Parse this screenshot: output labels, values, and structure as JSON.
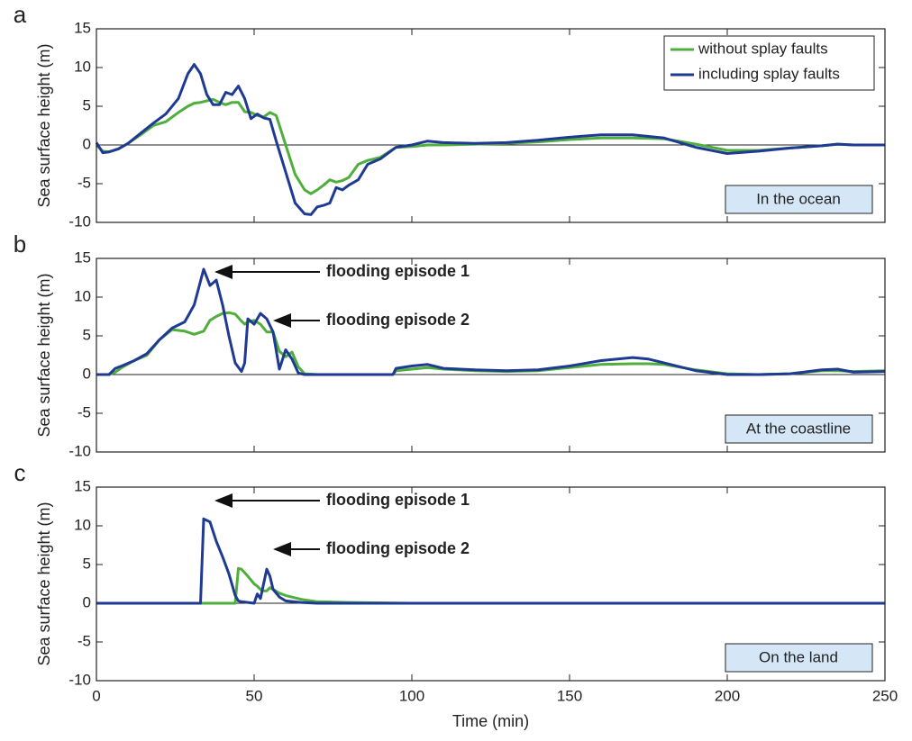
{
  "chart_data": [
    {
      "type": "line",
      "label": "a",
      "ylabel": "Sea surface height (m)",
      "box_label": "In the ocean",
      "legend": "upper right",
      "xlim": [
        0,
        250
      ],
      "xticks": [
        0,
        50,
        100,
        150,
        200,
        250
      ],
      "ylim": [
        -10,
        15
      ],
      "yticks": [
        -10,
        -5,
        0,
        5,
        10,
        15
      ],
      "x": [
        0,
        2,
        4,
        7,
        10,
        14,
        18,
        22,
        26,
        29,
        31,
        33,
        35,
        37,
        39,
        41,
        43,
        45,
        47,
        49,
        51,
        53,
        55,
        57,
        60,
        63,
        66,
        68,
        70,
        72,
        74,
        76,
        78,
        80,
        83,
        86,
        90,
        95,
        100,
        105,
        110,
        120,
        130,
        140,
        150,
        160,
        170,
        180,
        190,
        200,
        210,
        220,
        230,
        235,
        240,
        250
      ],
      "series": [
        {
          "name": "without splay faults",
          "color": "#4fae3c",
          "values": [
            0,
            -0.8,
            -0.9,
            -0.5,
            0.2,
            1.3,
            2.5,
            3,
            4.2,
            5,
            5.4,
            5.5,
            5.7,
            5.9,
            5.5,
            5.2,
            5.5,
            5.5,
            4.3,
            4.2,
            3.8,
            3.6,
            4.2,
            3.8,
            0,
            -3.8,
            -5.8,
            -6.3,
            -5.8,
            -5.2,
            -4.5,
            -4.8,
            -4.6,
            -4.2,
            -2.5,
            -2,
            -1.6,
            -0.3,
            -0.2,
            0,
            0,
            0.1,
            0.2,
            0.4,
            0.7,
            0.9,
            0.9,
            0.8,
            0.1,
            -0.7,
            -0.7,
            -0.4,
            -0.1,
            0.1,
            0,
            0
          ]
        },
        {
          "name": "including splay faults",
          "color": "#1f3a93",
          "values": [
            0.3,
            -1,
            -0.9,
            -0.5,
            0.2,
            1.5,
            2.8,
            4,
            6,
            9.2,
            10.4,
            9.2,
            6.5,
            5.2,
            5.2,
            6.8,
            6.5,
            7.6,
            6,
            3.4,
            4,
            3.5,
            3.3,
            0.5,
            -3.5,
            -7.5,
            -8.9,
            -9,
            -8,
            -7.8,
            -7.5,
            -5.5,
            -5.8,
            -5.2,
            -4.5,
            -2.5,
            -1.8,
            -0.3,
            0,
            0.5,
            0.3,
            0.2,
            0.3,
            0.6,
            1,
            1.3,
            1.3,
            0.9,
            -0.3,
            -1.1,
            -0.8,
            -0.4,
            -0.1,
            0.1,
            0,
            0
          ]
        }
      ]
    },
    {
      "type": "line",
      "label": "b",
      "ylabel": "Sea surface height (m)",
      "box_label": "At the coastline",
      "annotations": [
        "flooding episode 1",
        "flooding episode 2"
      ],
      "xlim": [
        0,
        250
      ],
      "xticks": [
        0,
        50,
        100,
        150,
        200,
        250
      ],
      "ylim": [
        -10,
        15
      ],
      "yticks": [
        -10,
        -5,
        0,
        5,
        10,
        15
      ],
      "x": [
        0,
        4,
        6,
        8,
        12,
        16,
        20,
        24,
        28,
        31,
        34,
        36,
        38,
        40,
        42,
        44,
        46,
        47,
        48,
        50,
        52,
        54,
        56,
        58,
        60,
        62,
        64,
        66,
        70,
        80,
        90,
        94,
        95,
        100,
        105,
        110,
        120,
        130,
        140,
        150,
        160,
        170,
        175,
        180,
        190,
        200,
        210,
        220,
        230,
        235,
        240,
        250
      ],
      "series": [
        {
          "name": "without splay faults",
          "color": "#4fae3c",
          "values": [
            0,
            0,
            0.3,
            0.9,
            1.8,
            2.5,
            4.5,
            5.8,
            5.6,
            5.2,
            5.6,
            7,
            7.5,
            7.9,
            8,
            7.8,
            6.9,
            6.5,
            6.8,
            7,
            6.5,
            5.5,
            5.5,
            3,
            2.3,
            2.9,
            1,
            0.1,
            0,
            0,
            0,
            0,
            0.5,
            0.7,
            0.9,
            0.7,
            0.5,
            0.4,
            0.5,
            0.9,
            1.3,
            1.4,
            1.4,
            1.3,
            0.6,
            0.1,
            0,
            0.1,
            0.5,
            0.5,
            0.4,
            0.5
          ]
        },
        {
          "name": "including splay faults",
          "color": "#1f3a93",
          "values": [
            0,
            0,
            0.8,
            1.1,
            1.8,
            2.7,
            4.5,
            6,
            6.8,
            9,
            13.6,
            11.5,
            12.2,
            9,
            5,
            1.5,
            0.4,
            1.5,
            7.2,
            6.5,
            7.9,
            7.2,
            5.5,
            0.7,
            3.2,
            2,
            0.2,
            0,
            0,
            0,
            0,
            0,
            0.8,
            1.1,
            1.3,
            0.8,
            0.6,
            0.5,
            0.6,
            1.1,
            1.8,
            2.2,
            2,
            1.5,
            0.5,
            0,
            0,
            0.1,
            0.6,
            0.7,
            0.3,
            0.4
          ]
        }
      ]
    },
    {
      "type": "line",
      "label": "c",
      "ylabel": "Sea surface height (m)",
      "xlabel": "Time (min)",
      "box_label": "On the land",
      "annotations": [
        "flooding episode 1",
        "flooding episode 2"
      ],
      "xlim": [
        0,
        250
      ],
      "xticks": [
        0,
        50,
        100,
        150,
        200,
        250
      ],
      "ylim": [
        -10,
        15
      ],
      "yticks": [
        -10,
        -5,
        0,
        5,
        10,
        15
      ],
      "x": [
        0,
        33,
        34,
        36,
        38,
        40,
        42,
        44,
        45,
        46,
        48,
        50,
        51,
        52,
        53,
        54,
        55,
        56,
        58,
        60,
        65,
        70,
        80,
        100,
        150,
        200,
        250
      ],
      "series": [
        {
          "name": "without splay faults",
          "color": "#4fae3c",
          "values": [
            0,
            0,
            0,
            0,
            0,
            0,
            0,
            0,
            4.5,
            4.4,
            3.5,
            2.5,
            2.2,
            1.8,
            1.6,
            1.6,
            2,
            1.8,
            1.3,
            1,
            0.5,
            0.2,
            0.1,
            0,
            0,
            0,
            0
          ]
        },
        {
          "name": "including splay faults",
          "color": "#1f3a93",
          "values": [
            0,
            0,
            10.9,
            10.5,
            8,
            6,
            3.8,
            1,
            0.3,
            0.2,
            0.1,
            0,
            1.2,
            0.6,
            2.5,
            4.4,
            3.5,
            1.8,
            0.8,
            0.3,
            0.1,
            0,
            0,
            0,
            0,
            0,
            0
          ]
        }
      ]
    }
  ]
}
